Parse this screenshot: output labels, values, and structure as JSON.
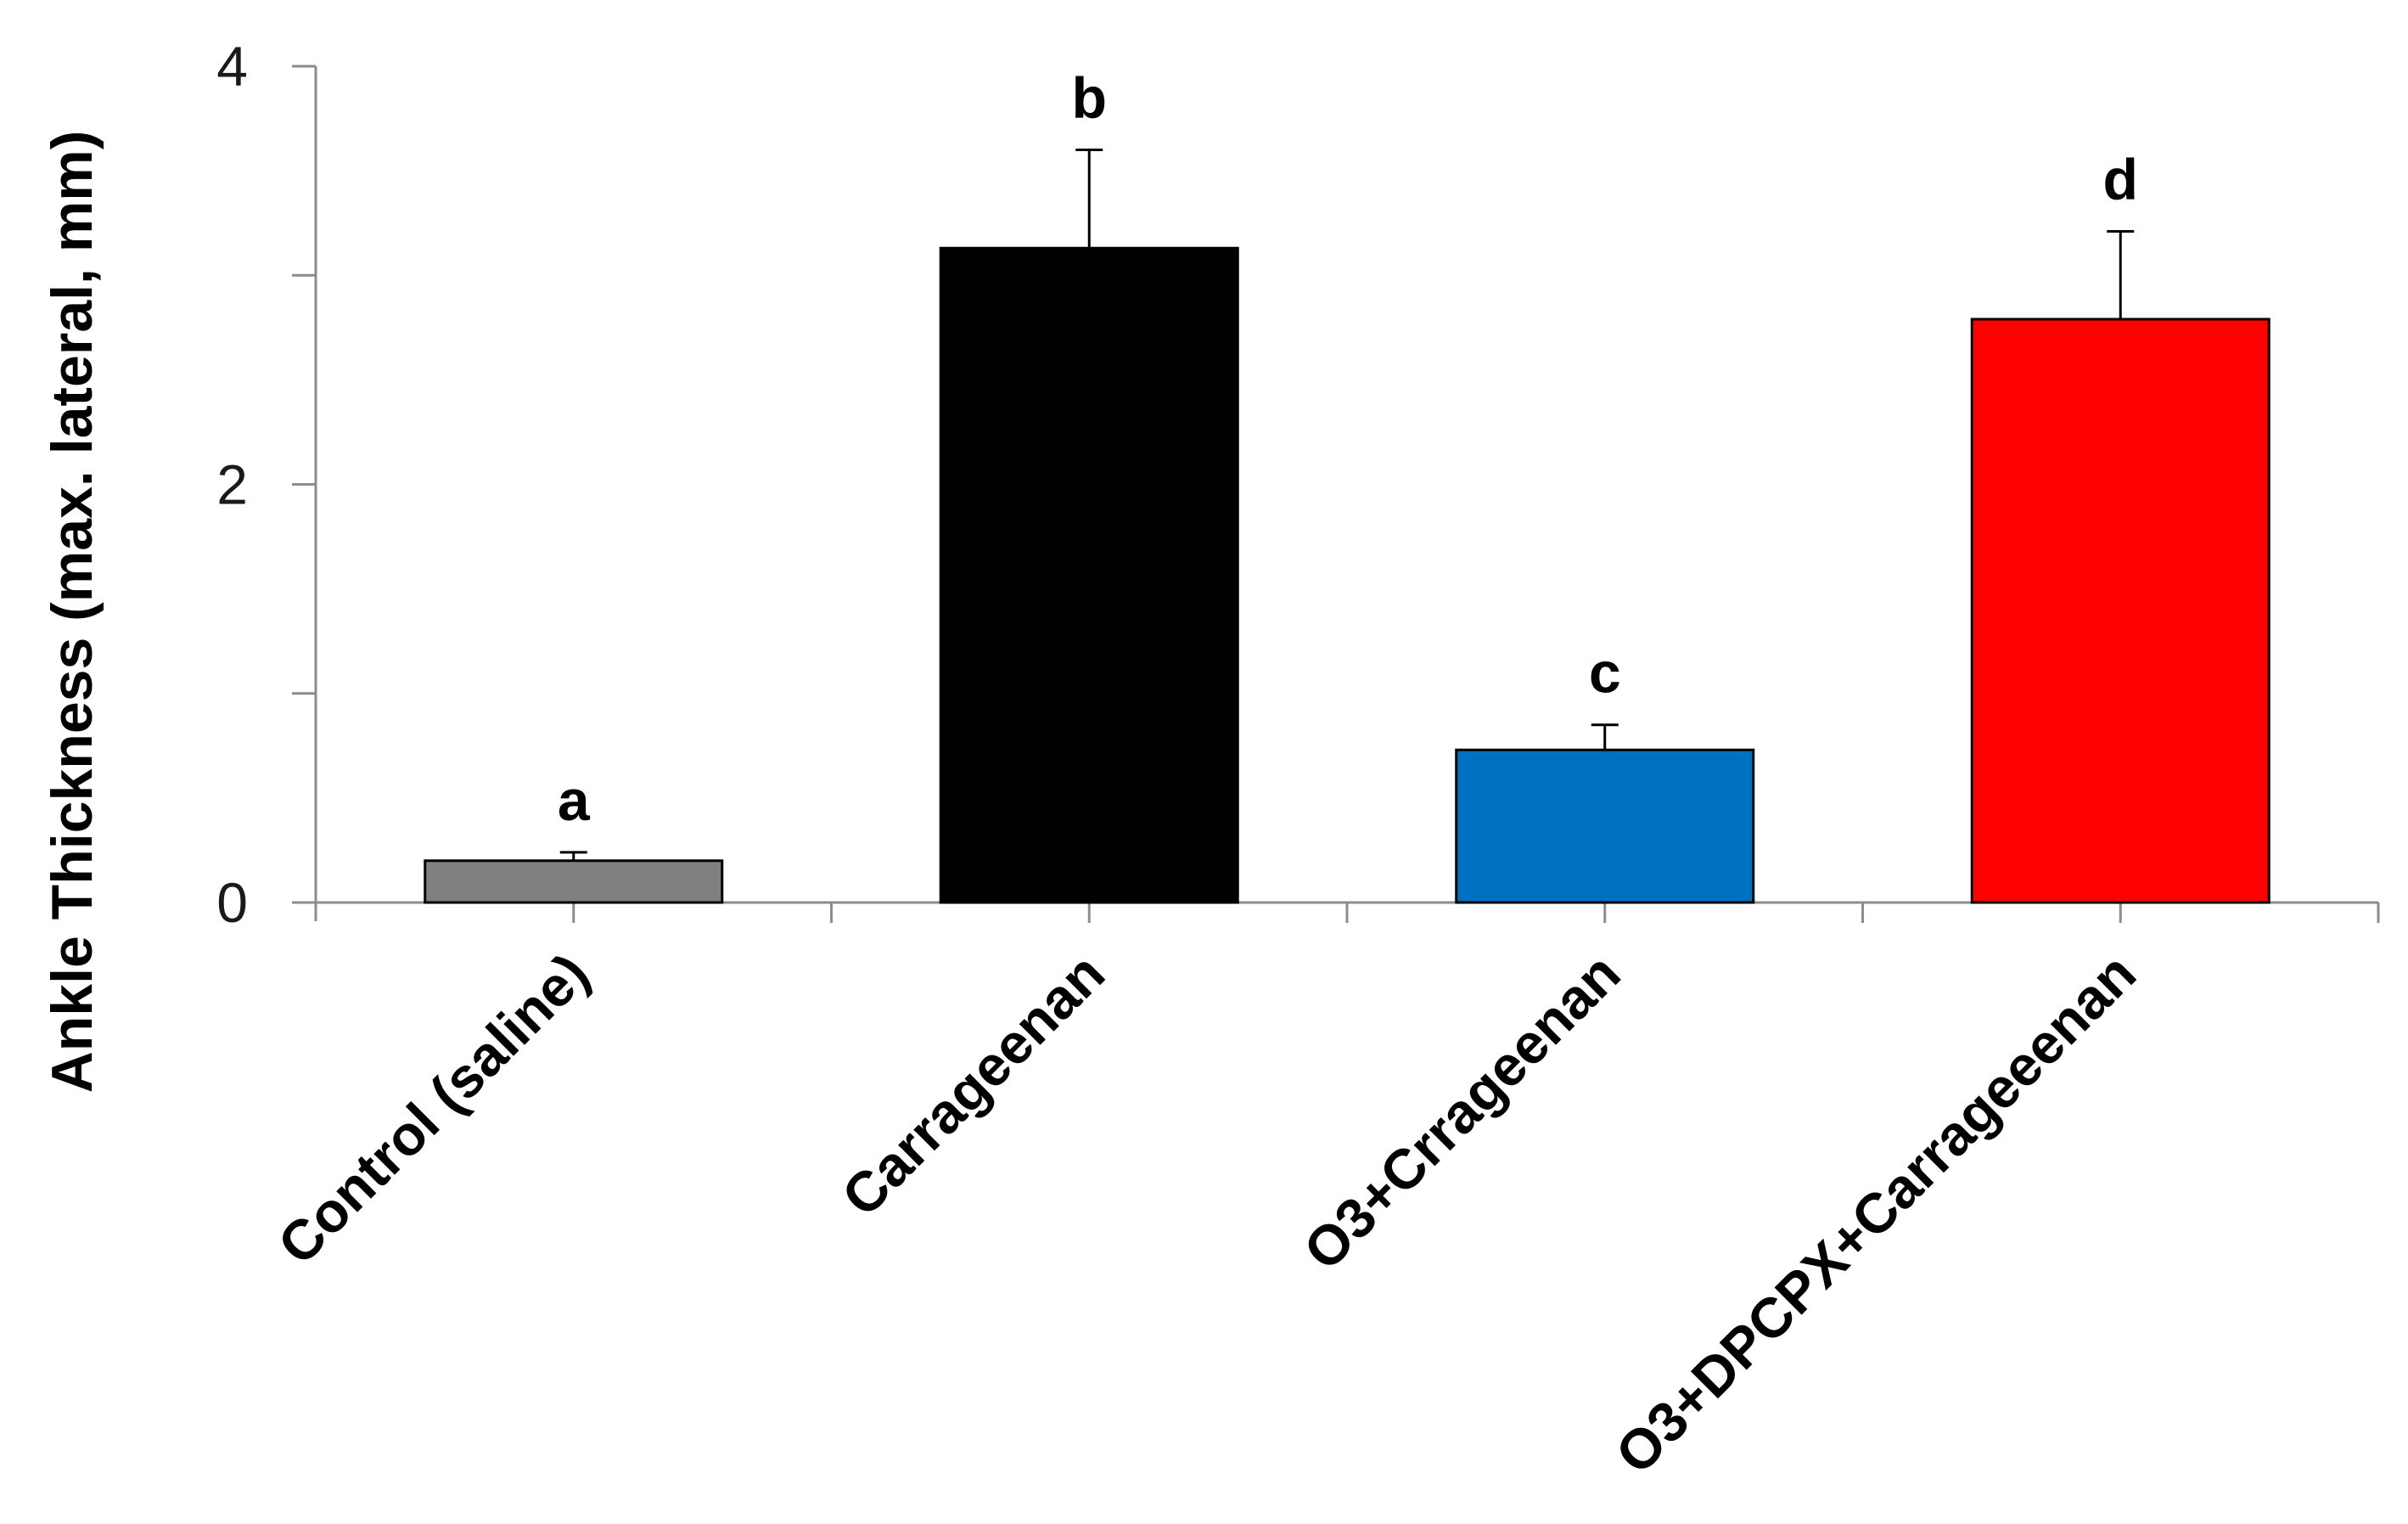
{
  "chart_data": {
    "type": "bar",
    "title": "",
    "xlabel": "",
    "ylabel": "Ankle Thickness (max. lateral, mm)",
    "ylim": [
      0,
      4
    ],
    "y_ticks": [
      "0",
      "2",
      "4"
    ],
    "y_minor_ticks": [
      1,
      3
    ],
    "grid": false,
    "legend": "none",
    "categories": [
      "Control  (saline)",
      "Carrageenan",
      "O3+Crrageenan",
      "O3+DPCPX+Carrageeenan"
    ],
    "values": [
      0.2,
      3.13,
      0.73,
      2.79
    ],
    "error": [
      0.04,
      0.47,
      0.12,
      0.42
    ],
    "significance_labels": [
      "a",
      "b",
      "c",
      "d"
    ],
    "colors": [
      "#808080",
      "#000000",
      "#0070c0",
      "#ff0000"
    ]
  }
}
